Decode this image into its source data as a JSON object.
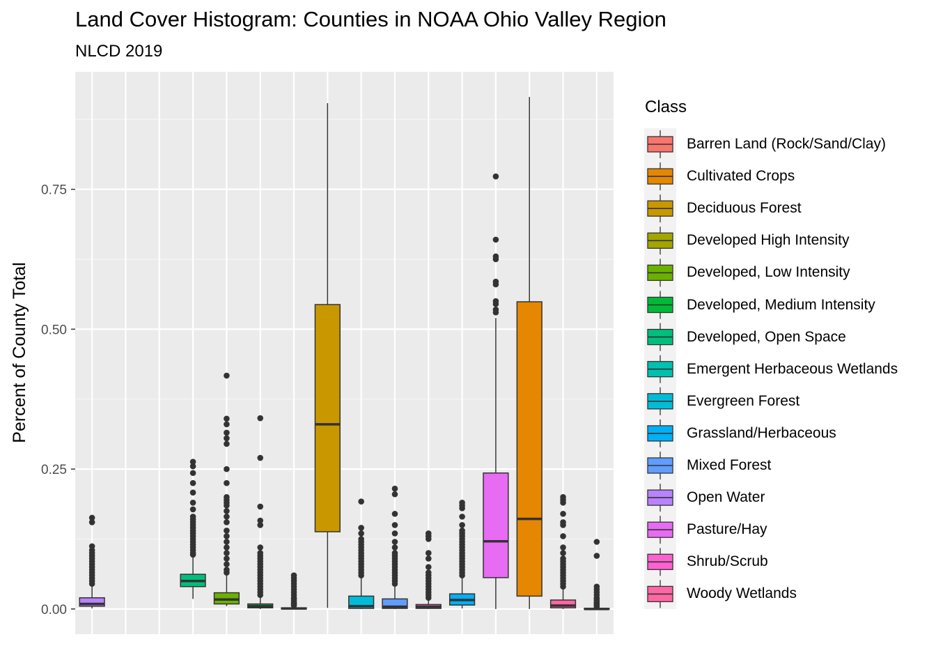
{
  "chart_data": {
    "type": "box",
    "title": "Land Cover Histogram: Counties in NOAA Ohio Valley Region",
    "subtitle": "NLCD 2019",
    "ylabel": "Percent of County Total",
    "xlabel": "",
    "ylim": [
      -0.045,
      0.96
    ],
    "y_ticks": [
      0.0,
      0.25,
      0.5,
      0.75
    ],
    "y_tick_labels": [
      "0.00",
      "0.25",
      "0.50",
      "0.75"
    ],
    "grid": true,
    "legend": {
      "title": "Class",
      "position": "right"
    },
    "series": [
      {
        "name": "Barren Land (Rock/Sand/Clay)",
        "color": "#F8766D",
        "slot": 1,
        "visible": false
      },
      {
        "name": "Cultivated Crops",
        "color": "#E58700",
        "slot": 13,
        "min": 0.0,
        "q1": 0.023,
        "median": 0.161,
        "q3": 0.549,
        "max": 0.915,
        "outliers": []
      },
      {
        "name": "Deciduous Forest",
        "color": "#C99800",
        "slot": 7,
        "min": 0.002,
        "q1": 0.138,
        "median": 0.33,
        "q3": 0.544,
        "max": 0.904,
        "outliers": []
      },
      {
        "name": "Developed High Intensity",
        "color": "#A3A500",
        "slot": 2,
        "visible": false
      },
      {
        "name": "Developed, Low Intensity",
        "color": "#6BB100",
        "slot": 4,
        "min": 0.005,
        "q1": 0.009,
        "median": 0.017,
        "q3": 0.029,
        "max": 0.06,
        "outliers": [
          0.065,
          0.07,
          0.08,
          0.09,
          0.1,
          0.11,
          0.12,
          0.13,
          0.14,
          0.155,
          0.165,
          0.175,
          0.185,
          0.19,
          0.195,
          0.2,
          0.225,
          0.25,
          0.295,
          0.305,
          0.315,
          0.33,
          0.34,
          0.417
        ]
      },
      {
        "name": "Developed, Medium Intensity",
        "color": "#00BA38",
        "slot": 5,
        "min": 0.0,
        "q1": 0.002,
        "median": 0.005,
        "q3": 0.009,
        "max": 0.02,
        "outliers": [
          0.025,
          0.03,
          0.035,
          0.04,
          0.045,
          0.05,
          0.055,
          0.06,
          0.065,
          0.07,
          0.075,
          0.08,
          0.085,
          0.09,
          0.095,
          0.1,
          0.11,
          0.15,
          0.158,
          0.183,
          0.27,
          0.341
        ]
      },
      {
        "name": "Developed, Open Space",
        "color": "#00BF7D",
        "slot": 3,
        "min": 0.018,
        "q1": 0.04,
        "median": 0.05,
        "q3": 0.062,
        "max": 0.093,
        "outliers": [
          0.097,
          0.1,
          0.105,
          0.11,
          0.115,
          0.12,
          0.125,
          0.13,
          0.135,
          0.14,
          0.145,
          0.15,
          0.155,
          0.16,
          0.165,
          0.178,
          0.19,
          0.208,
          0.225,
          0.243,
          0.255,
          0.263
        ]
      },
      {
        "name": "Emergent Herbaceous Wetlands",
        "color": "#00C0AF",
        "slot": 6,
        "min": 0.0,
        "q1": 0.0,
        "median": 0.001,
        "q3": 0.002,
        "max": 0.004,
        "outliers": [
          0.006,
          0.008,
          0.01,
          0.012,
          0.015,
          0.018,
          0.02,
          0.025,
          0.03,
          0.035,
          0.04,
          0.045,
          0.05,
          0.055,
          0.06
        ]
      },
      {
        "name": "Evergreen Forest",
        "color": "#00BCD8",
        "slot": 8,
        "min": 0.0,
        "q1": 0.001,
        "median": 0.005,
        "q3": 0.023,
        "max": 0.055,
        "outliers": [
          0.06,
          0.065,
          0.07,
          0.075,
          0.08,
          0.085,
          0.09,
          0.095,
          0.1,
          0.105,
          0.11,
          0.115,
          0.12,
          0.125,
          0.135,
          0.145,
          0.192
        ]
      },
      {
        "name": "Grassland/Herbaceous",
        "color": "#00B0F6",
        "slot": 11,
        "min": 0.001,
        "q1": 0.007,
        "median": 0.016,
        "q3": 0.027,
        "max": 0.055,
        "outliers": [
          0.06,
          0.065,
          0.07,
          0.075,
          0.08,
          0.085,
          0.09,
          0.095,
          0.1,
          0.105,
          0.11,
          0.115,
          0.12,
          0.125,
          0.13,
          0.135,
          0.14,
          0.15,
          0.165,
          0.18,
          0.185,
          0.19
        ]
      },
      {
        "name": "Mixed Forest",
        "color": "#619CFF",
        "slot": 9,
        "min": 0.0,
        "q1": 0.001,
        "median": 0.004,
        "q3": 0.018,
        "max": 0.04,
        "outliers": [
          0.045,
          0.05,
          0.055,
          0.06,
          0.065,
          0.07,
          0.075,
          0.08,
          0.085,
          0.09,
          0.095,
          0.1,
          0.11,
          0.12,
          0.135,
          0.15,
          0.17,
          0.205,
          0.215
        ]
      },
      {
        "name": "Open Water",
        "color": "#B983FF",
        "slot": 0,
        "min": 0.001,
        "q1": 0.005,
        "median": 0.009,
        "q3": 0.02,
        "max": 0.04,
        "outliers": [
          0.045,
          0.05,
          0.055,
          0.06,
          0.065,
          0.07,
          0.075,
          0.08,
          0.085,
          0.09,
          0.095,
          0.1,
          0.105,
          0.112,
          0.155,
          0.163
        ]
      },
      {
        "name": "Pasture/Hay",
        "color": "#E76BF3",
        "slot": 12,
        "min": 0.0,
        "q1": 0.056,
        "median": 0.121,
        "q3": 0.243,
        "max": 0.52,
        "outliers": [
          0.53,
          0.535,
          0.545,
          0.55,
          0.58,
          0.585,
          0.625,
          0.63,
          0.66,
          0.773
        ]
      },
      {
        "name": "Shrub/Scrub",
        "color": "#FD61D1",
        "slot": 10,
        "min": 0.0,
        "q1": 0.001,
        "median": 0.004,
        "q3": 0.008,
        "max": 0.018,
        "outliers": [
          0.02,
          0.025,
          0.03,
          0.035,
          0.04,
          0.045,
          0.05,
          0.055,
          0.06,
          0.065,
          0.075,
          0.09,
          0.1,
          0.125,
          0.13,
          0.135
        ]
      },
      {
        "name": "Woody Wetlands",
        "color": "#FF67A4",
        "slot": 14,
        "min": 0.0,
        "q1": 0.002,
        "median": 0.006,
        "q3": 0.016,
        "max": 0.035,
        "outliers": [
          0.04,
          0.045,
          0.05,
          0.055,
          0.06,
          0.065,
          0.07,
          0.075,
          0.08,
          0.085,
          0.09,
          0.1,
          0.11,
          0.13,
          0.15,
          0.155,
          0.17,
          0.19,
          0.195,
          0.2
        ]
      },
      {
        "name": "",
        "color": "#8A8A8A",
        "slot": 15,
        "in_legend": false,
        "min": 0.0,
        "q1": 0.0,
        "median": 0.0,
        "q3": 0.001,
        "max": 0.002,
        "outliers": [
          0.004,
          0.006,
          0.008,
          0.01,
          0.012,
          0.015,
          0.018,
          0.02,
          0.025,
          0.03,
          0.035,
          0.04,
          0.095,
          0.12
        ]
      }
    ]
  }
}
